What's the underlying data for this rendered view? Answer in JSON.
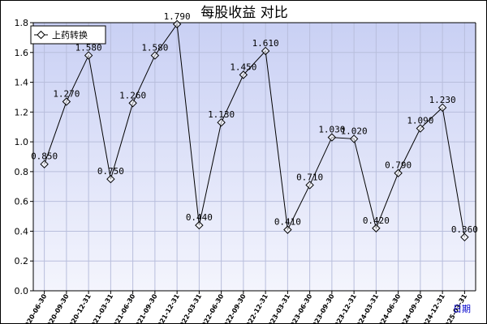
{
  "chart_data": {
    "type": "line",
    "title": "每股收益  对比",
    "xlabel": "日期",
    "ylabel": "",
    "ylim": [
      0,
      1.8
    ],
    "yticks": [
      "0.0",
      "0.2",
      "0.4",
      "0.6",
      "0.8",
      "1.0",
      "1.2",
      "1.4",
      "1.6",
      "1.8"
    ],
    "legend_position": "top-left",
    "grid": true,
    "colors": {
      "plot_bg_top": "#c9d0f4",
      "plot_bg_bottom": "#f4f5fd",
      "grid": "#b8bedc",
      "line": "#000000"
    },
    "categories": [
      "2020-06-30",
      "2020-09-30",
      "2020-12-31",
      "2021-03-31",
      "2021-06-30",
      "2021-09-30",
      "2021-12-31",
      "2022-03-31",
      "2022-06-30",
      "2022-09-30",
      "2022-12-31",
      "2023-03-31",
      "2023-06-30",
      "2023-09-30",
      "2023-12-31",
      "2024-03-31",
      "2024-06-30",
      "2024-09-30",
      "2024-12-31",
      "2025-03-31"
    ],
    "series": [
      {
        "name": "上药转换",
        "values": [
          0.85,
          1.27,
          1.58,
          0.75,
          1.26,
          1.58,
          1.79,
          0.44,
          1.13,
          1.45,
          1.61,
          0.41,
          0.71,
          1.03,
          1.02,
          0.42,
          0.79,
          1.09,
          1.23,
          0.36
        ],
        "labels": [
          "0.850",
          "1.270",
          "1.580",
          "0.750",
          "1.260",
          "1.580",
          "1.790",
          "0.440",
          "1.130",
          "1.450",
          "1.610",
          "0.410",
          "0.710",
          "1.030",
          "1.020",
          "0.420",
          "0.790",
          "1.090",
          "1.230",
          "0.360"
        ]
      }
    ]
  }
}
